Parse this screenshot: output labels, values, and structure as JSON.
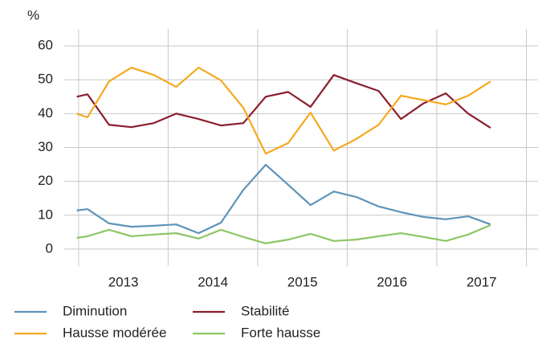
{
  "chart_data": {
    "type": "line",
    "y_label": "%",
    "xlim": [
      2012.84,
      2018.13
    ],
    "xgrid": [
      2013,
      2014,
      2015,
      2016,
      2017,
      2018
    ],
    "xticks": [
      {
        "value": 2013.5,
        "label": "2013"
      },
      {
        "value": 2014.5,
        "label": "2014"
      },
      {
        "value": 2015.5,
        "label": "2015"
      },
      {
        "value": 2016.5,
        "label": "2016"
      },
      {
        "value": 2017.5,
        "label": "2017"
      }
    ],
    "ylim": [
      -5,
      65
    ],
    "yticks": [
      0,
      10,
      20,
      30,
      40,
      50,
      60
    ],
    "grid": true,
    "legend": "bottom",
    "x": [
      2012.98,
      2013.1,
      2013.34,
      2013.59,
      2013.84,
      2014.09,
      2014.34,
      2014.59,
      2014.84,
      2015.09,
      2015.34,
      2015.59,
      2015.85,
      2016.1,
      2016.35,
      2016.6,
      2016.85,
      2017.1,
      2017.35,
      2017.6
    ],
    "series": [
      {
        "name": "Diminution",
        "color": "#5e94b9",
        "values": [
          11.4,
          11.8,
          7.6,
          6.6,
          6.9,
          7.3,
          4.7,
          7.8,
          17.5,
          24.9,
          19,
          13,
          17,
          15.4,
          12.6,
          10.9,
          9.5,
          8.8,
          9.7,
          7.3
        ]
      },
      {
        "name": "Stabilité",
        "color": "#8b1e2f",
        "values": [
          45,
          45.7,
          36.7,
          36,
          37.2,
          40,
          38.4,
          36.5,
          37.2,
          45,
          46.4,
          42,
          51.4,
          49,
          46.7,
          38.4,
          43,
          46,
          40,
          35.8
        ]
      },
      {
        "name": "Hausse modérée",
        "color": "#f5a91e",
        "values": [
          40,
          38.9,
          49.5,
          53.6,
          51.4,
          47.9,
          53.6,
          49.8,
          41.7,
          28.2,
          31.3,
          40.3,
          29.1,
          32.5,
          36.7,
          45.3,
          44,
          42.7,
          45.3,
          49.5
        ]
      },
      {
        "name": "Forte hausse",
        "color": "#8cc665",
        "values": [
          3.3,
          3.8,
          5.7,
          3.8,
          4.3,
          4.7,
          3.1,
          5.7,
          3.6,
          1.7,
          2.8,
          4.5,
          2.4,
          2.8,
          3.8,
          4.7,
          3.6,
          2.4,
          4.3,
          7.1
        ]
      }
    ]
  }
}
